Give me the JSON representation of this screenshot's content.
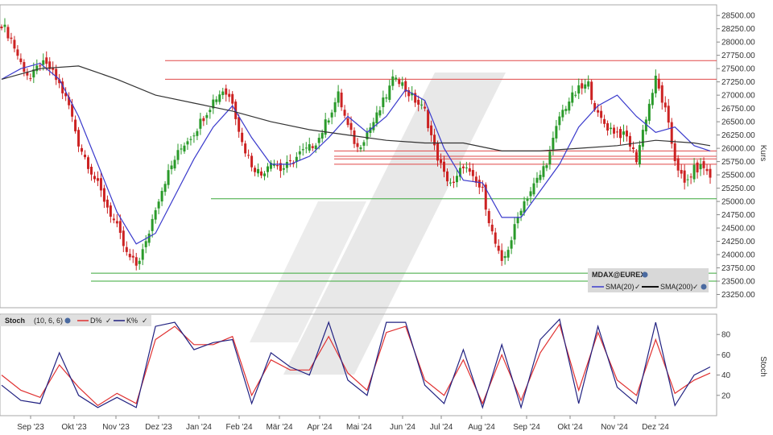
{
  "chart_data": [
    {
      "type": "candlestick",
      "instrument": "MDAX@EUREX",
      "ylabel": "Kurs",
      "ylim": [
        23000,
        28700
      ],
      "y_ticks": [
        23250,
        23500,
        23750,
        24000,
        24250,
        24500,
        24750,
        25000,
        25250,
        25500,
        25750,
        26000,
        26250,
        26500,
        26750,
        27000,
        27250,
        27500,
        27750,
        28000,
        28250,
        28500
      ],
      "y_tick_labels": [
        "23250.00",
        "23500.00",
        "23750.00",
        "24000.00",
        "24250.00",
        "24500.00",
        "24750.00",
        "25000.00",
        "25250.00",
        "25500.00",
        "25750.00",
        "26000.00",
        "26250.00",
        "26500.00",
        "26750.00",
        "27000.00",
        "27250.00",
        "27500.00",
        "27750.00",
        "28000.00",
        "28250.00",
        "28500.00"
      ],
      "x_months": [
        "Sep '23",
        "Okt '23",
        "Nov '23",
        "Dez '23",
        "Jan '24",
        "Feb '24",
        "Mär '24",
        "Apr '24",
        "Mai '24",
        "Jun '24",
        "Jul '24",
        "Aug '24",
        "Sep '24",
        "Okt '24",
        "Nov '24",
        "Dez '24"
      ],
      "close_path": [
        [
          0,
          28350
        ],
        [
          3,
          28050
        ],
        [
          6,
          27600
        ],
        [
          9,
          27300
        ],
        [
          12,
          27600
        ],
        [
          15,
          27500
        ],
        [
          18,
          27200
        ],
        [
          21,
          26800
        ],
        [
          24,
          26100
        ],
        [
          27,
          25700
        ],
        [
          30,
          25300
        ],
        [
          33,
          24900
        ],
        [
          36,
          24500
        ],
        [
          39,
          24000
        ],
        [
          42,
          23800
        ],
        [
          45,
          24200
        ],
        [
          48,
          24900
        ],
        [
          51,
          25400
        ],
        [
          54,
          25800
        ],
        [
          57,
          26100
        ],
        [
          60,
          26300
        ],
        [
          63,
          26600
        ],
        [
          66,
          26900
        ],
        [
          69,
          27100
        ],
        [
          72,
          26900
        ],
        [
          75,
          26100
        ],
        [
          78,
          25700
        ],
        [
          81,
          25500
        ],
        [
          84,
          25800
        ],
        [
          87,
          25600
        ],
        [
          90,
          25700
        ],
        [
          93,
          25900
        ],
        [
          96,
          26000
        ],
        [
          99,
          26200
        ],
        [
          102,
          26600
        ],
        [
          105,
          27000
        ],
        [
          108,
          26400
        ],
        [
          111,
          26000
        ],
        [
          114,
          26300
        ],
        [
          117,
          26600
        ],
        [
          120,
          27000
        ],
        [
          123,
          27400
        ],
        [
          126,
          27100
        ],
        [
          129,
          26900
        ],
        [
          132,
          26700
        ],
        [
          135,
          26000
        ],
        [
          138,
          25500
        ],
        [
          141,
          25300
        ],
        [
          144,
          25700
        ],
        [
          147,
          25400
        ],
        [
          150,
          25200
        ],
        [
          153,
          24400
        ],
        [
          156,
          23800
        ],
        [
          159,
          24300
        ],
        [
          162,
          24900
        ],
        [
          165,
          25200
        ],
        [
          168,
          25500
        ],
        [
          171,
          25900
        ],
        [
          174,
          26600
        ],
        [
          177,
          26900
        ],
        [
          180,
          27100
        ],
        [
          183,
          27200
        ],
        [
          186,
          26600
        ],
        [
          189,
          26400
        ],
        [
          192,
          26300
        ],
        [
          195,
          26200
        ],
        [
          198,
          25800
        ],
        [
          201,
          26600
        ],
        [
          204,
          27300
        ],
        [
          207,
          26700
        ],
        [
          210,
          25800
        ],
        [
          213,
          25300
        ],
        [
          216,
          25600
        ],
        [
          219,
          25650
        ],
        [
          221,
          25450
        ]
      ],
      "series": [
        {
          "name": "SMA(20)",
          "color": "#3a3acc",
          "points": [
            [
              0,
              27300
            ],
            [
              6,
              27500
            ],
            [
              12,
              27600
            ],
            [
              18,
              27300
            ],
            [
              24,
              26600
            ],
            [
              30,
              25700
            ],
            [
              36,
              24800
            ],
            [
              42,
              24200
            ],
            [
              48,
              24400
            ],
            [
              54,
              25100
            ],
            [
              60,
              25800
            ],
            [
              66,
              26400
            ],
            [
              72,
              26800
            ],
            [
              78,
              26200
            ],
            [
              84,
              25700
            ],
            [
              90,
              25700
            ],
            [
              96,
              25850
            ],
            [
              102,
              26200
            ],
            [
              108,
              26600
            ],
            [
              114,
              26300
            ],
            [
              120,
              26600
            ],
            [
              126,
              27100
            ],
            [
              132,
              26900
            ],
            [
              138,
              26000
            ],
            [
              144,
              25400
            ],
            [
              150,
              25350
            ],
            [
              156,
              24700
            ],
            [
              162,
              24700
            ],
            [
              168,
              25200
            ],
            [
              174,
              25700
            ],
            [
              180,
              26400
            ],
            [
              186,
              26800
            ],
            [
              192,
              27000
            ],
            [
              198,
              26600
            ],
            [
              204,
              26300
            ],
            [
              210,
              26400
            ],
            [
              216,
              26050
            ],
            [
              221,
              25950
            ]
          ]
        },
        {
          "name": "SMA(200)",
          "color": "#333333",
          "points": [
            [
              0,
              27300
            ],
            [
              12,
              27500
            ],
            [
              24,
              27550
            ],
            [
              36,
              27300
            ],
            [
              48,
              27000
            ],
            [
              60,
              26850
            ],
            [
              72,
              26700
            ],
            [
              84,
              26500
            ],
            [
              96,
              26350
            ],
            [
              108,
              26250
            ],
            [
              120,
              26150
            ],
            [
              132,
              26100
            ],
            [
              144,
              26100
            ],
            [
              156,
              25950
            ],
            [
              168,
              25950
            ],
            [
              180,
              26000
            ],
            [
              192,
              26050
            ],
            [
              204,
              26150
            ],
            [
              216,
              26100
            ],
            [
              221,
              26050
            ]
          ]
        }
      ],
      "resistance_lines": [
        27650,
        27300,
        25950,
        25850,
        25800,
        25700
      ],
      "support_lines": [
        25050,
        23650,
        23500
      ],
      "legend": [
        "SMA(20)",
        "SMA(200)"
      ]
    },
    {
      "type": "line",
      "indicator": "Stoch",
      "params": "(10, 6, 6)",
      "ylabel": "Stoch",
      "ylim": [
        0,
        100
      ],
      "y_ticks": [
        20,
        40,
        60,
        80
      ],
      "y_tick_labels": [
        "20",
        "40",
        "60",
        "80"
      ],
      "series": [
        {
          "name": "D%",
          "color": "#e03030",
          "points": [
            [
              0,
              40
            ],
            [
              6,
              25
            ],
            [
              12,
              18
            ],
            [
              18,
              50
            ],
            [
              24,
              28
            ],
            [
              30,
              10
            ],
            [
              36,
              22
            ],
            [
              42,
              12
            ],
            [
              48,
              75
            ],
            [
              54,
              88
            ],
            [
              60,
              70
            ],
            [
              66,
              70
            ],
            [
              72,
              78
            ],
            [
              78,
              20
            ],
            [
              84,
              55
            ],
            [
              90,
              45
            ],
            [
              96,
              45
            ],
            [
              102,
              78
            ],
            [
              108,
              42
            ],
            [
              114,
              25
            ],
            [
              120,
              82
            ],
            [
              126,
              88
            ],
            [
              132,
              35
            ],
            [
              138,
              20
            ],
            [
              144,
              55
            ],
            [
              150,
              12
            ],
            [
              156,
              60
            ],
            [
              162,
              15
            ],
            [
              168,
              62
            ],
            [
              174,
              90
            ],
            [
              180,
              25
            ],
            [
              186,
              82
            ],
            [
              192,
              35
            ],
            [
              198,
              20
            ],
            [
              204,
              75
            ],
            [
              210,
              22
            ],
            [
              216,
              35
            ],
            [
              221,
              42
            ]
          ]
        },
        {
          "name": "K%",
          "color": "#202080",
          "points": [
            [
              0,
              30
            ],
            [
              6,
              15
            ],
            [
              12,
              12
            ],
            [
              18,
              62
            ],
            [
              24,
              20
            ],
            [
              30,
              8
            ],
            [
              36,
              18
            ],
            [
              42,
              8
            ],
            [
              48,
              88
            ],
            [
              54,
              92
            ],
            [
              60,
              65
            ],
            [
              66,
              72
            ],
            [
              72,
              75
            ],
            [
              78,
              12
            ],
            [
              84,
              62
            ],
            [
              90,
              48
            ],
            [
              96,
              40
            ],
            [
              102,
              92
            ],
            [
              108,
              35
            ],
            [
              114,
              20
            ],
            [
              120,
              92
            ],
            [
              126,
              92
            ],
            [
              132,
              30
            ],
            [
              138,
              12
            ],
            [
              144,
              65
            ],
            [
              150,
              8
            ],
            [
              156,
              70
            ],
            [
              162,
              8
            ],
            [
              168,
              75
            ],
            [
              174,
              95
            ],
            [
              180,
              12
            ],
            [
              186,
              88
            ],
            [
              192,
              28
            ],
            [
              198,
              12
            ],
            [
              204,
              92
            ],
            [
              210,
              10
            ],
            [
              216,
              40
            ],
            [
              221,
              48
            ]
          ]
        }
      ],
      "legend_header": "Stoch",
      "legend": [
        "D%",
        "K%"
      ]
    }
  ],
  "labels": {
    "instrument": "MDAX@EUREX",
    "sma20": "SMA(20)",
    "sma200": "SMA(200)",
    "kurs": "Kurs",
    "stoch": "Stoch",
    "stoch_params": "(10, 6, 6)",
    "d": "D%",
    "k": "K%"
  }
}
